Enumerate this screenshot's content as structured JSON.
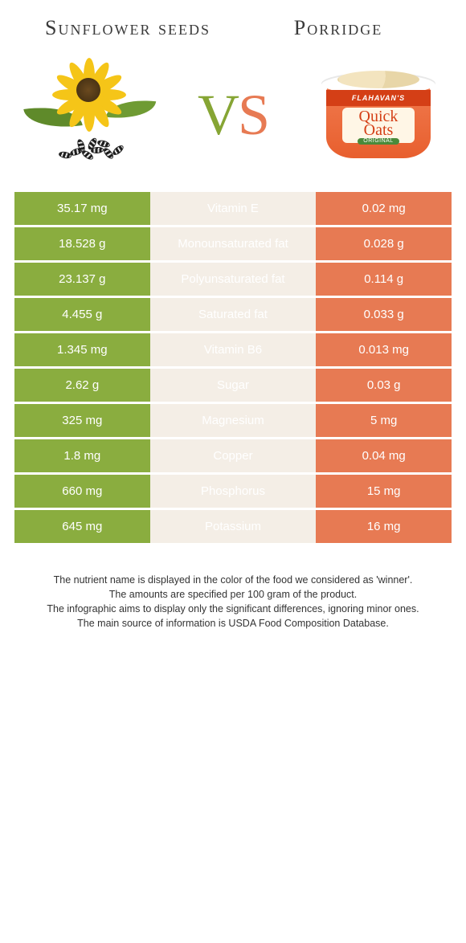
{
  "header": {
    "left_title": "Sunflower seeds",
    "right_title": "Porridge",
    "vs_v": "V",
    "vs_s": "S"
  },
  "hero": {
    "left": {
      "name": "sunflower-seeds-illustration",
      "petal_color": "#f5c518",
      "center_color": "#3d2a10",
      "leaf_color": "#5f8a2a",
      "seed_stripe_dark": "#1d1d1d",
      "seed_stripe_light": "#e6e6e6"
    },
    "right": {
      "name": "porridge-cup-illustration",
      "brand": "FLAHAVAN'S",
      "product_line1": "Quick",
      "product_line2": "Oats",
      "variant": "ORIGINAL",
      "cup_color": "#e85f2e",
      "banner_color": "#d43f16",
      "label_bg": "#fff6e6",
      "variant_bg": "#4a8a3a"
    }
  },
  "table": {
    "colors": {
      "left_bg": "#8aad3f",
      "mid_bg": "#f4eee6",
      "right_bg": "#e77a53",
      "mid_text_green": "#6b8a2c",
      "mid_text_orange": "#d2643c",
      "value_text": "#ffffff"
    },
    "rows": [
      {
        "left": "35.17 mg",
        "label": "Vitamin E",
        "winner": "left",
        "right": "0.02 mg"
      },
      {
        "left": "18.528 g",
        "label": "Monounsaturated fat",
        "winner": "left",
        "right": "0.028 g"
      },
      {
        "left": "23.137 g",
        "label": "Polyunsaturated fat",
        "winner": "left",
        "right": "0.114 g"
      },
      {
        "left": "4.455 g",
        "label": "Saturated fat",
        "winner": "right",
        "right": "0.033 g"
      },
      {
        "left": "1.345 mg",
        "label": "Vitamin B6",
        "winner": "left",
        "right": "0.013 mg"
      },
      {
        "left": "2.62 g",
        "label": "Sugar",
        "winner": "right",
        "right": "0.03 g"
      },
      {
        "left": "325 mg",
        "label": "Magnesium",
        "winner": "left",
        "right": "5 mg"
      },
      {
        "left": "1.8 mg",
        "label": "Copper",
        "winner": "left",
        "right": "0.04 mg"
      },
      {
        "left": "660 mg",
        "label": "Phosphorus",
        "winner": "left",
        "right": "15 mg"
      },
      {
        "left": "645 mg",
        "label": "Potassium",
        "winner": "left",
        "right": "16 mg"
      }
    ]
  },
  "notes": {
    "line1": "The nutrient name is displayed in the color of the food we considered as 'winner'.",
    "line2": "The amounts are specified per 100 gram of the product.",
    "line3": "The infographic aims to display only the significant differences, ignoring minor ones.",
    "line4": "The main source of information is USDA Food Composition Database."
  },
  "typography": {
    "title_fontsize": 26,
    "vs_fontsize": 72,
    "cell_fontsize": 15,
    "notes_fontsize": 12.5
  }
}
